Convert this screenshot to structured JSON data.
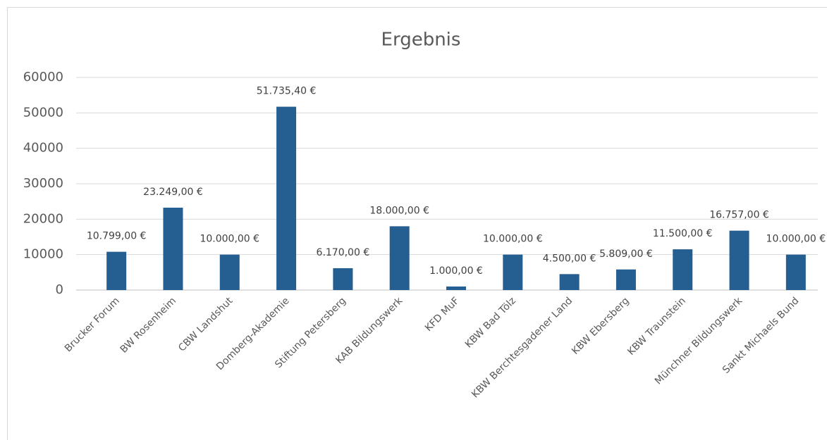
{
  "chart_data": {
    "type": "bar",
    "title": "Ergebnis",
    "categories": [
      "Brucker Forum",
      "BW Rosenheim",
      "CBW Landshut",
      "Domberg-Akademie",
      "Stiftung Petersberg",
      "KAB Bildungswerk",
      "KFD MuF",
      "KBW Bad Tölz",
      "KBW Berchtesgadener Land",
      "KBW Ebersberg",
      "KBW Traunstein",
      "Münchner Bildungswerk",
      "Sankt Michaels Bund"
    ],
    "values": [
      10799,
      23249,
      10000,
      51735.4,
      6170,
      18000,
      1000,
      10000,
      4500,
      5809,
      11500,
      16757,
      10000
    ],
    "value_labels": [
      "10.799,00 €",
      "23.249,00 €",
      "10.000,00 €",
      "51.735,40 €",
      "6.170,00 €",
      "18.000,00 €",
      "1.000,00 €",
      "10.000,00 €",
      "4.500,00 €",
      "5.809,00 €",
      "11.500,00 €",
      "16.757,00 €",
      "10.000,00 €"
    ],
    "color": "#255e91",
    "ylim": [
      0,
      60000
    ],
    "yticks": [
      0,
      10000,
      20000,
      30000,
      40000,
      50000,
      60000
    ],
    "grid": true
  }
}
